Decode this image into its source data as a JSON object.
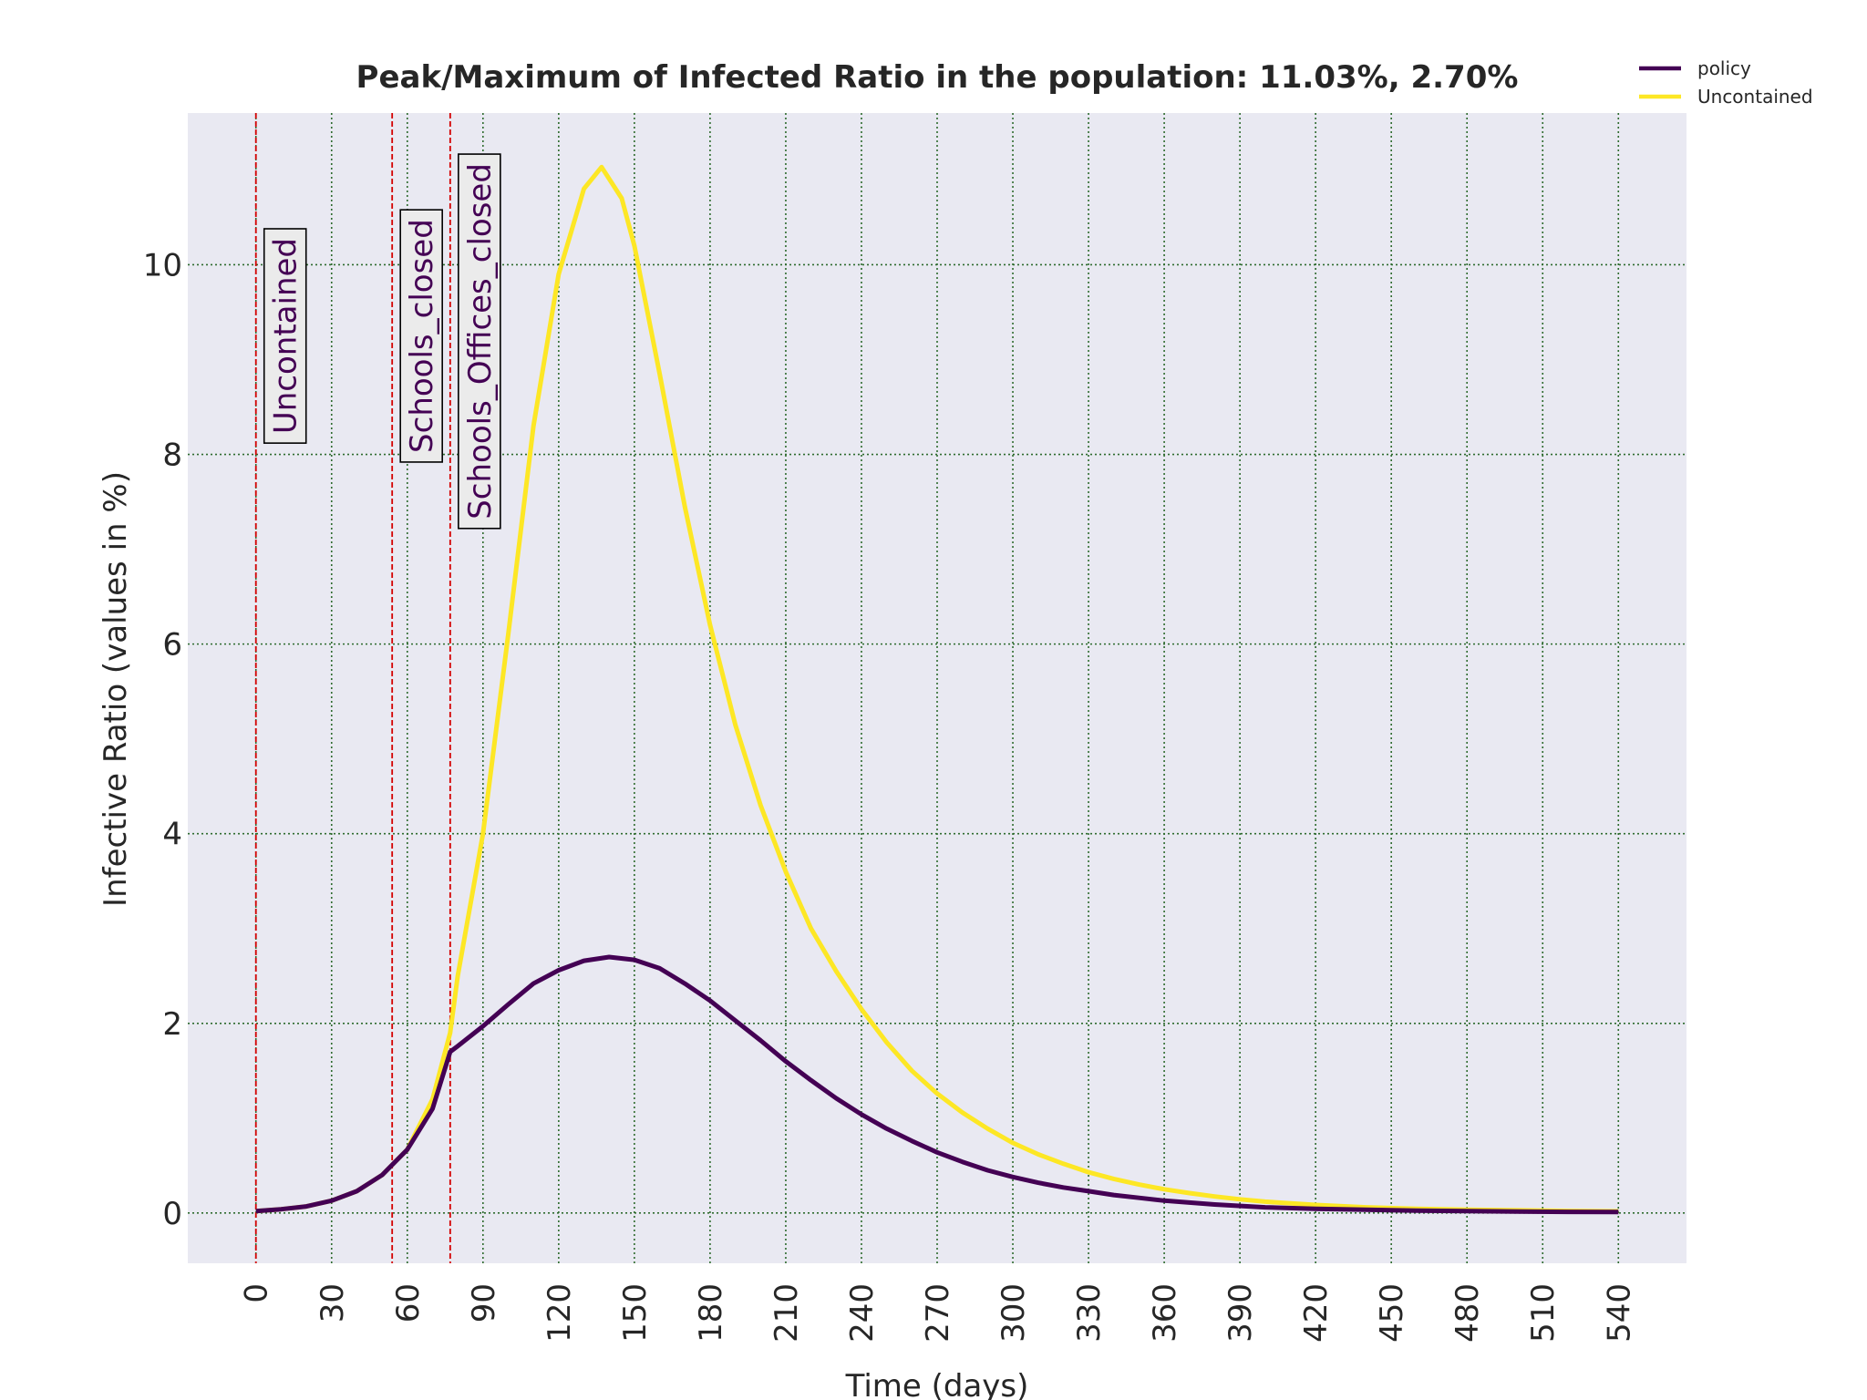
{
  "chart_data": {
    "type": "line",
    "title": "Peak/Maximum of Infected Ratio in the population: 11.03%, 2.70%",
    "xlabel": "Time (days)",
    "ylabel": "Infective Ratio (values in %)",
    "xlim": [
      -27,
      567
    ],
    "ylim": [
      -0.53,
      11.6
    ],
    "x_ticks": [
      0,
      30,
      60,
      90,
      120,
      150,
      180,
      210,
      240,
      270,
      300,
      330,
      360,
      390,
      420,
      450,
      480,
      510,
      540
    ],
    "y_ticks": [
      0,
      2,
      4,
      6,
      8,
      10
    ],
    "grid": true,
    "legend_position": "top-right",
    "colors": {
      "background": "#e9e9f2",
      "grid": "#2e6b2e",
      "policy": "#440154",
      "uncontained": "#fde725",
      "vline": "#d40000",
      "annotation_box": "#ebebeb",
      "annotation_text": "#440154"
    },
    "series": [
      {
        "name": "policy",
        "x": [
          0,
          10,
          20,
          30,
          40,
          50,
          60,
          70,
          77,
          80,
          90,
          100,
          110,
          120,
          130,
          140,
          150,
          160,
          170,
          180,
          190,
          200,
          210,
          220,
          230,
          240,
          250,
          260,
          270,
          280,
          290,
          300,
          310,
          320,
          330,
          340,
          350,
          360,
          380,
          400,
          420,
          440,
          460,
          480,
          500,
          520,
          540
        ],
        "y": [
          0.02,
          0.04,
          0.07,
          0.13,
          0.23,
          0.4,
          0.67,
          1.1,
          1.7,
          1.76,
          1.97,
          2.2,
          2.42,
          2.56,
          2.66,
          2.7,
          2.67,
          2.58,
          2.42,
          2.24,
          2.03,
          1.82,
          1.6,
          1.4,
          1.21,
          1.04,
          0.89,
          0.76,
          0.64,
          0.54,
          0.45,
          0.38,
          0.32,
          0.27,
          0.23,
          0.19,
          0.16,
          0.13,
          0.09,
          0.06,
          0.045,
          0.035,
          0.025,
          0.02,
          0.015,
          0.012,
          0.01
        ]
      },
      {
        "name": "Uncontained",
        "x": [
          0,
          10,
          20,
          30,
          40,
          50,
          60,
          70,
          77,
          80,
          90,
          100,
          110,
          120,
          130,
          137,
          145,
          150,
          160,
          170,
          180,
          190,
          200,
          210,
          220,
          230,
          240,
          250,
          260,
          270,
          280,
          290,
          300,
          310,
          320,
          330,
          340,
          350,
          360,
          370,
          380,
          390,
          400,
          420,
          440,
          460,
          480,
          500,
          520,
          540
        ],
        "y": [
          0.02,
          0.04,
          0.07,
          0.13,
          0.23,
          0.4,
          0.67,
          1.2,
          1.9,
          2.5,
          4.0,
          6.1,
          8.3,
          9.9,
          10.8,
          11.03,
          10.7,
          10.2,
          8.85,
          7.45,
          6.2,
          5.15,
          4.3,
          3.6,
          3.0,
          2.55,
          2.15,
          1.8,
          1.5,
          1.26,
          1.06,
          0.89,
          0.74,
          0.62,
          0.52,
          0.43,
          0.36,
          0.3,
          0.25,
          0.21,
          0.175,
          0.145,
          0.12,
          0.085,
          0.06,
          0.045,
          0.035,
          0.028,
          0.022,
          0.018
        ]
      }
    ],
    "vlines": [
      {
        "x": 0,
        "label": "Uncontained"
      },
      {
        "x": 54,
        "label": "Schools_closed"
      },
      {
        "x": 77,
        "label": "Schools_Offices_closed"
      }
    ]
  }
}
